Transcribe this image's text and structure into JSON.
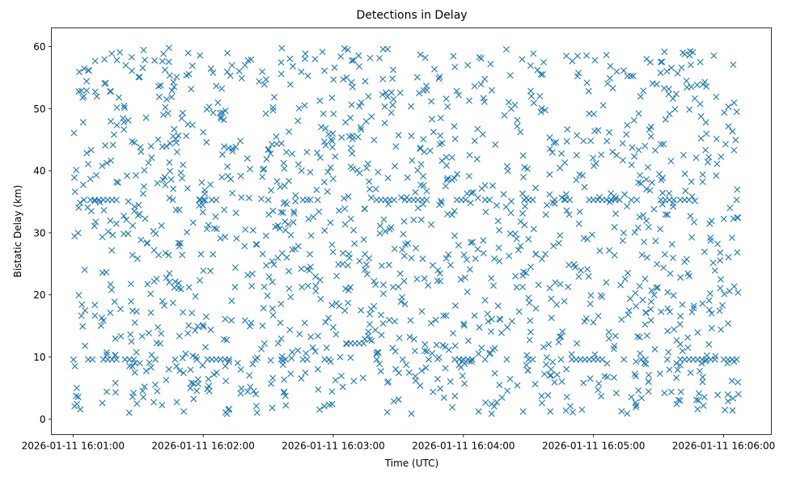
{
  "chart_data": {
    "type": "scatter",
    "title": "Detections in Delay",
    "xlabel": "Time (UTC)",
    "ylabel": "Bistatic Delay (km)",
    "x_type": "time",
    "xlim": [
      "2026-01-11 16:00:50",
      "2026-01-11 16:06:22"
    ],
    "ylim": [
      -2.5,
      63
    ],
    "x_ticks": [
      "2026-01-11 16:01:00",
      "2026-01-11 16:02:00",
      "2026-01-11 16:03:00",
      "2026-01-11 16:04:00",
      "2026-01-11 16:05:00",
      "2026-01-11 16:06:00"
    ],
    "y_ticks": [
      0,
      10,
      20,
      30,
      40,
      50,
      60
    ],
    "marker": "x",
    "color": "#1f77b4",
    "grid": false,
    "clusters": [
      {
        "delay_km": 35.3,
        "times": [
          "16:01:05",
          "16:01:08",
          "16:01:10",
          "16:01:12",
          "16:01:14",
          "16:01:16",
          "16:01:18",
          "16:01:20",
          "16:01:46",
          "16:02:04",
          "16:02:06",
          "16:02:30",
          "16:02:46",
          "16:02:48",
          "16:03:20",
          "16:03:22",
          "16:03:24",
          "16:03:26",
          "16:03:28",
          "16:03:33",
          "16:03:35",
          "16:03:37",
          "16:03:39",
          "16:03:41",
          "16:03:43",
          "16:03:57",
          "16:03:59",
          "16:04:01",
          "16:04:10",
          "16:04:12",
          "16:04:28",
          "16:04:30",
          "16:04:32",
          "16:04:42",
          "16:04:47",
          "16:04:49",
          "16:04:58",
          "16:05:00",
          "16:05:02",
          "16:05:04",
          "16:05:06",
          "16:05:08",
          "16:05:10",
          "16:05:12",
          "16:05:20",
          "16:05:31",
          "16:05:33",
          "16:05:35",
          "16:05:37",
          "16:05:40",
          "16:05:42",
          "16:05:44",
          "16:06:06"
        ]
      },
      {
        "delay_km": 9.6,
        "times": [
          "16:01:07",
          "16:01:09",
          "16:01:14",
          "16:01:16",
          "16:01:18",
          "16:01:20",
          "16:01:24",
          "16:01:26",
          "16:01:28",
          "16:01:38",
          "16:01:47",
          "16:01:57",
          "16:02:02",
          "16:02:04",
          "16:02:06",
          "16:02:08",
          "16:02:10",
          "16:02:12",
          "16:02:24",
          "16:02:36",
          "16:02:38",
          "16:02:46",
          "16:02:48",
          "16:02:56",
          "16:02:58",
          "16:03:20",
          "16:03:32",
          "16:03:44",
          "16:03:56",
          "16:03:58",
          "16:04:00",
          "16:04:02",
          "16:04:04",
          "16:04:10",
          "16:04:20",
          "16:04:30",
          "16:04:32",
          "16:04:45",
          "16:04:50",
          "16:04:52",
          "16:04:54",
          "16:04:56",
          "16:04:58",
          "16:05:00",
          "16:05:02",
          "16:05:04",
          "16:05:14",
          "16:05:22",
          "16:05:24",
          "16:05:34",
          "16:05:40",
          "16:05:42",
          "16:05:44",
          "16:05:46",
          "16:05:48",
          "16:05:50",
          "16:05:52",
          "16:05:54",
          "16:05:56",
          "16:06:00",
          "16:06:02",
          "16:06:04",
          "16:06:06"
        ]
      },
      {
        "delay_km": 12.2,
        "times": [
          "16:03:06",
          "16:03:08",
          "16:03:10",
          "16:03:12",
          "16:03:14"
        ]
      }
    ],
    "random_points": {
      "count": 1450,
      "time_range": [
        "16:01:00",
        "16:06:07"
      ],
      "delay_range_km": [
        0.8,
        59.8
      ],
      "seed": 11
    }
  }
}
